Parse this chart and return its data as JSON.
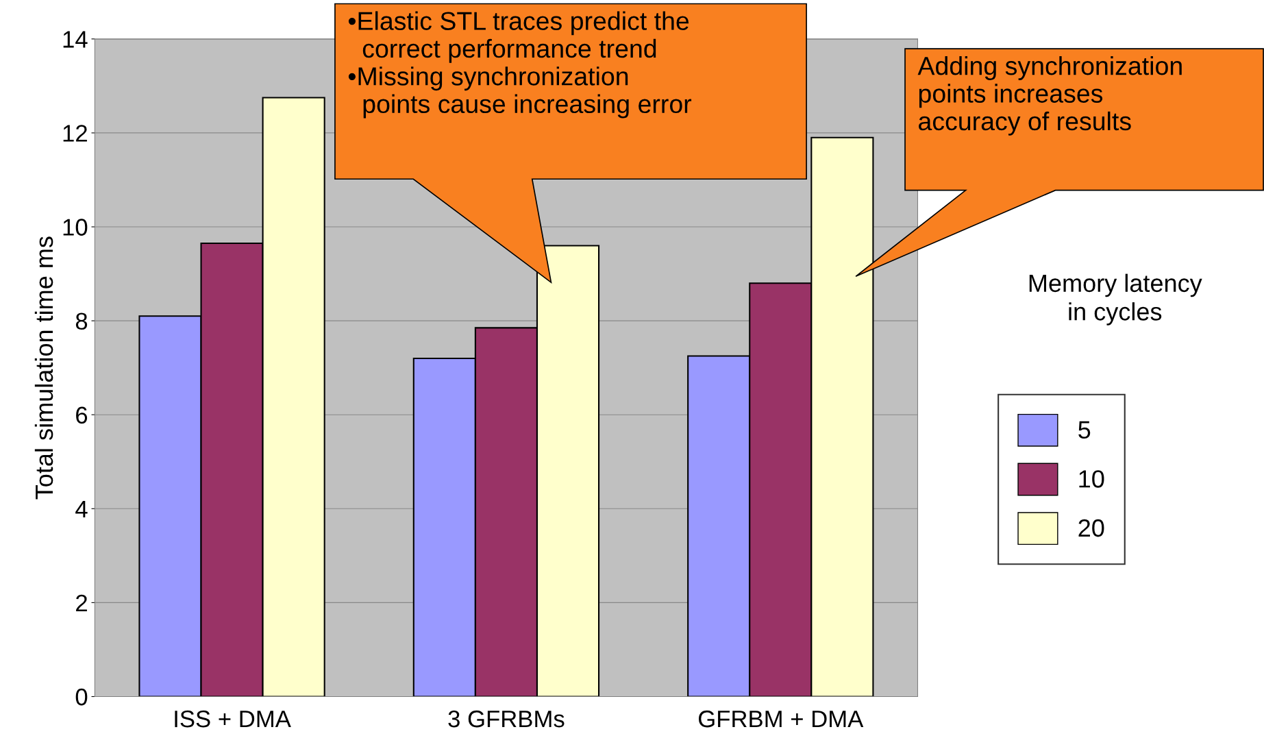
{
  "chart_data": {
    "type": "bar",
    "ylabel": "Total simulation time ms",
    "categories": [
      "ISS + DMA",
      "3 GFRBMs",
      "GFRBM + DMA"
    ],
    "series": [
      {
        "name": "5",
        "color": "#9999ff",
        "values": [
          8.1,
          7.2,
          7.25
        ]
      },
      {
        "name": "10",
        "color": "#993366",
        "values": [
          9.65,
          7.85,
          8.8
        ]
      },
      {
        "name": "20",
        "color": "#ffffcc",
        "values": [
          12.75,
          9.6,
          11.9
        ]
      }
    ],
    "ylim": [
      0,
      14
    ],
    "yticks": [
      0,
      2,
      4,
      6,
      8,
      10,
      12,
      14
    ],
    "grid": "y",
    "legend": "right",
    "legend_title": "Memory latency\nin cycles",
    "annotations": [
      "•Elastic STL traces predict the\n  correct performance trend\n•Missing synchronization\n  points cause increasing error",
      "Adding synchronization\npoints increases\naccuracy of results"
    ]
  }
}
